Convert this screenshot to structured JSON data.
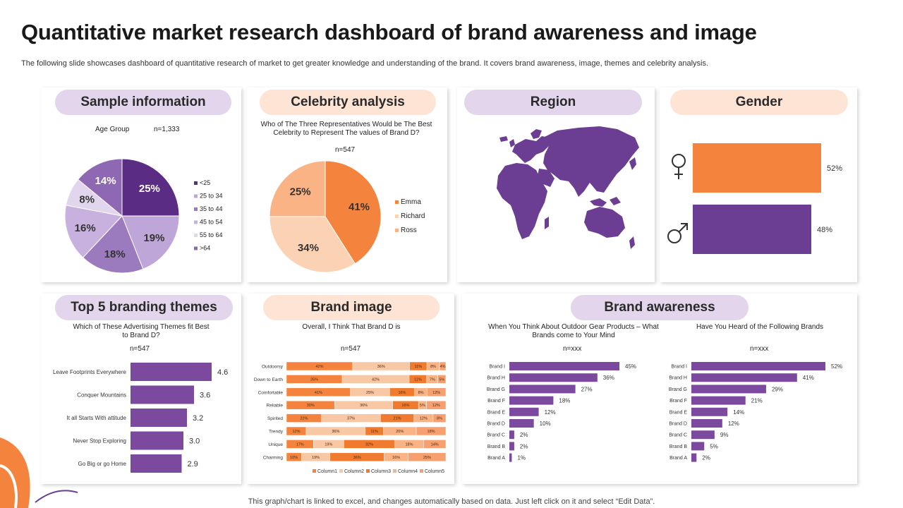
{
  "header": {
    "title": "Quantitative market research dashboard of brand awareness and image",
    "subtitle": "The following slide showcases dashboard of quantitative research of market to get greater knowledge and understanding of the brand. It covers brand awareness, image, themes and celebrity analysis.",
    "footer": "This graph/chart is linked to excel, and changes automatically based on data. Just left click on it and select “Edit Data”."
  },
  "colors": {
    "purple_dark": "#5b2c83",
    "purple": "#7b4a9e",
    "purple_mid": "#9b7bbd",
    "purple_light": "#bfa6d8",
    "purple_pale": "#dccfe9",
    "orange": "#f4843d",
    "peach": "#f8c7a3",
    "apricot": "#f9b384"
  },
  "sample": {
    "heading": "Sample information",
    "caption": "Age Group",
    "n": "n=1,333"
  },
  "celebrity": {
    "heading": "Celebrity analysis",
    "question": "Who of The Three Representatives Would be The Best Celebrity to Represent The values of Brand D?",
    "n": "n=547"
  },
  "region": {
    "heading": "Region"
  },
  "gender": {
    "heading": "Gender",
    "female_icon": "female-symbol-icon",
    "male_icon": "male-symbol-icon"
  },
  "themes": {
    "heading": "Top 5 branding themes",
    "question": "Which of These Advertising Themes fit Best to Brand D?",
    "n": "n=547"
  },
  "brand_image": {
    "heading": "Brand image",
    "question": "Overall, I Think That Brand D is",
    "n": "n=547"
  },
  "brand_awareness": {
    "heading": "Brand awareness",
    "left_question": "When You Think About Outdoor Gear Products – What Brands come to Your Mind",
    "left_n": "n=xxx",
    "right_question": "Have You Heard of the Following Brands",
    "right_n": "n=xxx"
  },
  "chart_data": [
    {
      "id": "age",
      "type": "pie",
      "title": "Age Group",
      "categories": [
        "<25",
        "25 to 34",
        "35 to 44",
        "45 to 54",
        "55 to 64",
        ">64"
      ],
      "values": [
        25,
        19,
        18,
        16,
        8,
        14
      ],
      "labels": [
        "25%",
        "19%",
        "18%",
        "16%",
        "8%",
        "14%"
      ],
      "colors": [
        "#5b2c83",
        "#bfa6d8",
        "#9b7bbd",
        "#c8b1de",
        "#e2d6ee",
        "#8f68b3"
      ],
      "legend": "right"
    },
    {
      "id": "celebrity",
      "type": "pie",
      "categories": [
        "Emma",
        "Richard",
        "Ross"
      ],
      "values": [
        41,
        34,
        25
      ],
      "labels": [
        "41%",
        "34%",
        "25%"
      ],
      "colors": [
        "#f4843d",
        "#fbd2b4",
        "#f9b384"
      ],
      "legend": "right"
    },
    {
      "id": "gender",
      "type": "bar",
      "orientation": "horizontal",
      "categories": [
        "Female",
        "Male"
      ],
      "values": [
        52,
        48
      ],
      "labels": [
        "52%",
        "48%"
      ],
      "colors": [
        "#f4843d",
        "#6b3d93"
      ]
    },
    {
      "id": "themes",
      "type": "bar",
      "orientation": "horizontal",
      "categories": [
        "Leave Footprints Everywhere",
        "Conquer Mountains",
        "It all Starts With attitude",
        "Never Stop Exploring",
        "Go Big or go Home"
      ],
      "values": [
        4.6,
        3.6,
        3.2,
        3.0,
        2.9
      ],
      "labels": [
        "4.6",
        "3.6",
        "3.2",
        "3.0",
        "2.9"
      ],
      "xlim": [
        0,
        5.5
      ]
    },
    {
      "id": "brand_image",
      "type": "bar",
      "orientation": "horizontal",
      "stacked": true,
      "categories": [
        "Outdoorsy",
        "Down to Earth",
        "Comfortable",
        "Reliable",
        "Spirited",
        "Trendy",
        "Unique",
        "Charming"
      ],
      "series": [
        {
          "name": "Column1",
          "values": [
            42,
            35,
            41,
            30,
            22,
            12,
            17,
            10
          ],
          "labels": [
            "42%",
            "35%",
            "41%",
            "30%",
            "22%",
            "12%",
            "17%",
            "10%"
          ]
        },
        {
          "name": "Column2",
          "values": [
            36,
            42,
            25,
            36,
            37,
            36,
            19,
            19
          ],
          "labels": [
            "36%",
            "42%",
            "25%",
            "36%",
            "37%",
            "36%",
            "19%",
            "19%"
          ]
        },
        {
          "name": "Column3",
          "values": [
            11,
            11,
            16,
            16,
            21,
            11,
            32,
            36
          ],
          "labels": [
            "11%",
            "11%",
            "16%",
            "16%",
            "21%",
            "11%",
            "32%",
            "36%"
          ]
        },
        {
          "name": "Column4",
          "values": [
            8,
            7,
            8,
            5,
            12,
            20,
            18,
            16
          ],
          "labels": [
            "8%",
            "7%",
            "8%",
            "5%",
            "12%",
            "20%",
            "18%",
            "16%"
          ]
        },
        {
          "name": "Column5",
          "values": [
            4,
            5,
            12,
            12,
            8,
            18,
            14,
            25
          ],
          "labels": [
            "4%",
            "5%",
            "12%",
            "12%",
            "8%",
            "18%",
            "14%",
            "25%"
          ]
        }
      ],
      "colors": [
        "#f4843d",
        "#f8c7a3",
        "#f07a2e",
        "#f9b384",
        "#f6a070"
      ],
      "legend": "bottom"
    },
    {
      "id": "awareness_top_of_mind",
      "type": "bar",
      "orientation": "horizontal",
      "categories": [
        "Brand I",
        "Brand H",
        "Brand G",
        "Brand F",
        "Brand E",
        "Brand D",
        "Brand C",
        "Brand B",
        "Brand A"
      ],
      "values": [
        45,
        36,
        27,
        18,
        12,
        10,
        2,
        2,
        1
      ],
      "labels": [
        "45%",
        "36%",
        "27%",
        "18%",
        "12%",
        "10%",
        "2%",
        "2%",
        "1%"
      ],
      "xlim": [
        0,
        60
      ]
    },
    {
      "id": "awareness_heard",
      "type": "bar",
      "orientation": "horizontal",
      "categories": [
        "Brand I",
        "Brand H",
        "Brand G",
        "Brand F",
        "Brand E",
        "Brand D",
        "Brand C",
        "Brand B",
        "Brand A"
      ],
      "values": [
        52,
        41,
        29,
        21,
        14,
        12,
        9,
        5,
        2
      ],
      "labels": [
        "52%",
        "41%",
        "29%",
        "21%",
        "14%",
        "12%",
        "9%",
        "5%",
        "2%"
      ],
      "xlim": [
        0,
        60
      ]
    }
  ]
}
